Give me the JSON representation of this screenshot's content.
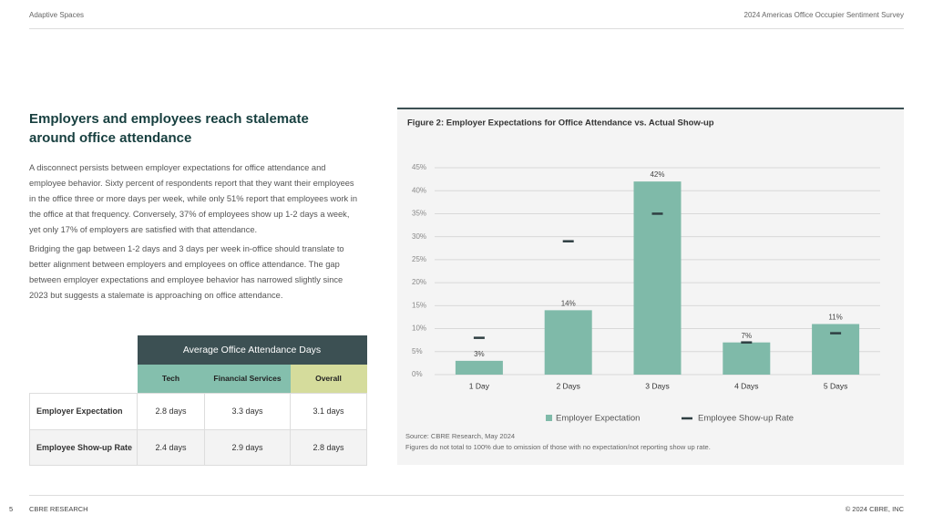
{
  "header": {
    "left": "Adaptive Spaces",
    "right": "2024 Americas Office Occupier Sentiment Survey"
  },
  "heading": "Employers and employees reach stalemate around office attendance",
  "paragraphs": [
    "A disconnect persists between employer expectations for office attendance and employee behavior. Sixty percent of respondents report that they want their employees in the office three or more days per week, while only 51% report that employees work in the office at that frequency. Conversely, 37% of employees show up 1-2 days a week, yet only 17% of employers are satisfied with that attendance.",
    "Bridging the gap between 1-2 days and 3 days per week in-office should translate to better alignment between employers and employees on office attendance. The gap between employer expectations and employee behavior has narrowed slightly since 2023 but suggests a stalemate is approaching on office attendance."
  ],
  "table": {
    "title": "Average Office Attendance Days",
    "columns": [
      "Tech",
      "Financial Services",
      "Overall"
    ],
    "rows": [
      [
        "Employer Expectation",
        "2.8 days",
        "3.3 days",
        "3.1 days"
      ],
      [
        "Employee Show-up Rate",
        "2.4 days",
        "2.9 days",
        "2.8 days"
      ]
    ]
  },
  "chart_data": {
    "type": "bar",
    "title": "Figure 2: Employer Expectations for Office Attendance vs. Actual Show-up",
    "categories": [
      "1 Day",
      "2 Days",
      "3 Days",
      "4 Days",
      "5 Days"
    ],
    "series": [
      {
        "name": "Employer Expectation",
        "color": "#7fbaa9",
        "values": [
          3,
          14,
          42,
          7,
          11
        ],
        "value_labels": [
          "3%",
          "14%",
          "42%",
          "7%",
          "11%"
        ]
      },
      {
        "name": "Employee Show-up Rate",
        "color": "#2f3f42",
        "marker": "dash",
        "values": [
          8,
          29,
          35,
          7,
          9
        ]
      }
    ],
    "ylim": [
      0,
      45
    ],
    "yticks": [
      {
        "value": 0,
        "label": "0%"
      },
      {
        "value": 5,
        "label": "5%"
      },
      {
        "value": 10,
        "label": "10%"
      },
      {
        "value": 15,
        "label": "15%"
      },
      {
        "value": 20,
        "label": "20%"
      },
      {
        "value": 25,
        "label": "25%"
      },
      {
        "value": 30,
        "label": "30%"
      },
      {
        "value": 35,
        "label": "35%"
      },
      {
        "value": 40,
        "label": "40%"
      },
      {
        "value": 45,
        "label": "45%"
      }
    ],
    "grid": true,
    "source": "Source: CBRE Research, May 2024",
    "note": "Figures do not total to 100% due to omission of those with no expectation/not reporting show up rate."
  },
  "footer": {
    "page": "5",
    "left": "CBRE RESEARCH",
    "right": "© 2024 CBRE, INC"
  }
}
